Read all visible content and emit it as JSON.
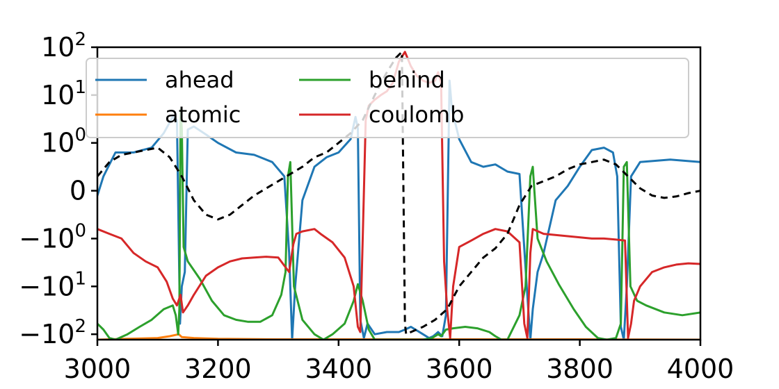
{
  "chart_data": {
    "type": "line",
    "title": "",
    "xlabel": "",
    "ylabel": "",
    "xlim": [
      3000,
      4000
    ],
    "y_scale": "symlog",
    "y_linthresh": 1,
    "ylim": [
      -130,
      100
    ],
    "grid": false,
    "legend_position": "top, three columns",
    "x_ticks": [
      {
        "value": 3000,
        "label": "3000"
      },
      {
        "value": 3200,
        "label": "3200"
      },
      {
        "value": 3400,
        "label": "3400"
      },
      {
        "value": 3600,
        "label": "3600"
      },
      {
        "value": 3800,
        "label": "3800"
      },
      {
        "value": 4000,
        "label": "4000"
      }
    ],
    "y_ticks": [
      {
        "value": 100,
        "base": "10",
        "exp": "2"
      },
      {
        "value": 10,
        "base": "10",
        "exp": "1"
      },
      {
        "value": 1,
        "base": "10",
        "exp": "0"
      },
      {
        "value": 0,
        "base": "0",
        "exp": ""
      },
      {
        "value": -1,
        "base": "−10",
        "exp": "0"
      },
      {
        "value": -10,
        "base": "−10",
        "exp": "1"
      },
      {
        "value": -100,
        "base": "−10",
        "exp": "2"
      }
    ],
    "series": [
      {
        "name": "ahead",
        "color": "#1f77b4",
        "dash": "",
        "points": [
          [
            3000,
            -0.1
          ],
          [
            3010,
            0.3
          ],
          [
            3030,
            0.8
          ],
          [
            3060,
            0.8
          ],
          [
            3090,
            0.9
          ],
          [
            3110,
            1.6
          ],
          [
            3125,
            3.5
          ],
          [
            3132,
            3
          ],
          [
            3137,
            -60
          ],
          [
            3140,
            -10
          ],
          [
            3145,
            -5
          ],
          [
            3150,
            1.9
          ],
          [
            3160,
            2.2
          ],
          [
            3180,
            1.5
          ],
          [
            3200,
            1.0
          ],
          [
            3230,
            0.8
          ],
          [
            3260,
            0.75
          ],
          [
            3290,
            0.6
          ],
          [
            3310,
            0.3
          ],
          [
            3318,
            -2
          ],
          [
            3323,
            -130
          ],
          [
            3328,
            -10
          ],
          [
            3340,
            -0.2
          ],
          [
            3360,
            0.5
          ],
          [
            3380,
            0.7
          ],
          [
            3400,
            0.8
          ],
          [
            3420,
            1.2
          ],
          [
            3428,
            3.5
          ],
          [
            3432,
            2
          ],
          [
            3436,
            -50
          ],
          [
            3442,
            -120
          ],
          [
            3448,
            -60
          ],
          [
            3460,
            -100
          ],
          [
            3480,
            -90
          ],
          [
            3500,
            -90
          ],
          [
            3510,
            -80
          ],
          [
            3520,
            -70
          ],
          [
            3540,
            -100
          ],
          [
            3550,
            -120
          ],
          [
            3557,
            -110
          ],
          [
            3565,
            -90
          ],
          [
            3572,
            -110
          ],
          [
            3578,
            -40
          ],
          [
            3584,
            20
          ],
          [
            3588,
            5
          ],
          [
            3600,
            1.2
          ],
          [
            3620,
            0.6
          ],
          [
            3640,
            0.5
          ],
          [
            3660,
            0.55
          ],
          [
            3680,
            0.4
          ],
          [
            3700,
            0.35
          ],
          [
            3712,
            -10
          ],
          [
            3718,
            -130
          ],
          [
            3722,
            -30
          ],
          [
            3730,
            -5
          ],
          [
            3740,
            -2
          ],
          [
            3760,
            -0.2
          ],
          [
            3780,
            0.1
          ],
          [
            3800,
            0.5
          ],
          [
            3820,
            0.85
          ],
          [
            3840,
            0.9
          ],
          [
            3855,
            0.8
          ],
          [
            3862,
            0.3
          ],
          [
            3868,
            -70
          ],
          [
            3873,
            -130
          ],
          [
            3878,
            -10
          ],
          [
            3885,
            0.3
          ],
          [
            3900,
            0.6
          ],
          [
            3950,
            0.65
          ],
          [
            4000,
            0.6
          ]
        ]
      },
      {
        "name": "atomic",
        "color": "#ff7f0e",
        "dash": "",
        "points": [
          [
            3000,
            -130
          ],
          [
            3050,
            -125
          ],
          [
            3100,
            -120
          ],
          [
            3120,
            -110
          ],
          [
            3135,
            -100
          ],
          [
            3140,
            -115
          ],
          [
            3160,
            -120
          ],
          [
            3200,
            -125
          ],
          [
            3300,
            -128
          ],
          [
            3400,
            -128
          ],
          [
            3500,
            -128
          ],
          [
            3600,
            -128
          ],
          [
            3700,
            -128
          ],
          [
            3800,
            -128
          ],
          [
            3900,
            -129
          ],
          [
            4000,
            -130
          ]
        ]
      },
      {
        "name": "behind",
        "color": "#2ca02c",
        "dash": "",
        "points": [
          [
            3000,
            -60
          ],
          [
            3010,
            -80
          ],
          [
            3020,
            -120
          ],
          [
            3030,
            -130
          ],
          [
            3050,
            -100
          ],
          [
            3070,
            -70
          ],
          [
            3090,
            -50
          ],
          [
            3110,
            -30
          ],
          [
            3125,
            -25
          ],
          [
            3130,
            -40
          ],
          [
            3134,
            -100
          ],
          [
            3136,
            -30
          ],
          [
            3138,
            5
          ],
          [
            3140,
            2
          ],
          [
            3143,
            -1.5
          ],
          [
            3150,
            -3
          ],
          [
            3170,
            -7
          ],
          [
            3190,
            -20
          ],
          [
            3210,
            -40
          ],
          [
            3230,
            -50
          ],
          [
            3250,
            -55
          ],
          [
            3270,
            -55
          ],
          [
            3290,
            -40
          ],
          [
            3305,
            -15
          ],
          [
            3312,
            -5
          ],
          [
            3316,
            0.3
          ],
          [
            3320,
            0.6
          ],
          [
            3326,
            -10
          ],
          [
            3340,
            -50
          ],
          [
            3360,
            -100
          ],
          [
            3375,
            -130
          ],
          [
            3390,
            -100
          ],
          [
            3410,
            -60
          ],
          [
            3425,
            -20
          ],
          [
            3432,
            -9
          ],
          [
            3440,
            -20
          ],
          [
            3450,
            -80
          ],
          [
            3460,
            -130
          ],
          [
            3480,
            -130
          ],
          [
            3500,
            -130
          ],
          [
            3520,
            -130
          ],
          [
            3540,
            -130
          ],
          [
            3555,
            -120
          ],
          [
            3565,
            -100
          ],
          [
            3570,
            -110
          ],
          [
            3578,
            -80
          ],
          [
            3590,
            -75
          ],
          [
            3610,
            -70
          ],
          [
            3630,
            -75
          ],
          [
            3650,
            -90
          ],
          [
            3660,
            -110
          ],
          [
            3670,
            -130
          ],
          [
            3680,
            -130
          ],
          [
            3700,
            -40
          ],
          [
            3710,
            -10
          ],
          [
            3718,
            0.3
          ],
          [
            3722,
            0.5
          ],
          [
            3730,
            -1
          ],
          [
            3745,
            -3
          ],
          [
            3765,
            -9
          ],
          [
            3790,
            -30
          ],
          [
            3810,
            -70
          ],
          [
            3830,
            -120
          ],
          [
            3845,
            -130
          ],
          [
            3860,
            -120
          ],
          [
            3868,
            -60
          ],
          [
            3873,
            0.5
          ],
          [
            3878,
            0.6
          ],
          [
            3884,
            -10
          ],
          [
            3895,
            -20
          ],
          [
            3910,
            -25
          ],
          [
            3940,
            -35
          ],
          [
            3970,
            -40
          ],
          [
            4000,
            -35
          ]
        ]
      },
      {
        "name": "coulomb",
        "color": "#d62728",
        "dash": "",
        "points": [
          [
            3000,
            -0.8
          ],
          [
            3020,
            -0.9
          ],
          [
            3040,
            -1.0
          ],
          [
            3060,
            -2
          ],
          [
            3080,
            -3
          ],
          [
            3100,
            -4
          ],
          [
            3115,
            -8
          ],
          [
            3125,
            -18
          ],
          [
            3132,
            -25
          ],
          [
            3138,
            -15
          ],
          [
            3142,
            -35
          ],
          [
            3150,
            -25
          ],
          [
            3160,
            -15
          ],
          [
            3180,
            -6
          ],
          [
            3200,
            -4
          ],
          [
            3220,
            -3
          ],
          [
            3240,
            -2.6
          ],
          [
            3260,
            -2.5
          ],
          [
            3280,
            -2.4
          ],
          [
            3300,
            -2.5
          ],
          [
            3318,
            -5
          ],
          [
            3325,
            -1.3
          ],
          [
            3330,
            -0.9
          ],
          [
            3340,
            -0.85
          ],
          [
            3360,
            -0.8
          ],
          [
            3370,
            -0.9
          ],
          [
            3390,
            -1.2
          ],
          [
            3410,
            -2.5
          ],
          [
            3425,
            -10
          ],
          [
            3432,
            -70
          ],
          [
            3436,
            -90
          ],
          [
            3440,
            -1
          ],
          [
            3445,
            3
          ],
          [
            3450,
            6
          ],
          [
            3460,
            8
          ],
          [
            3470,
            10
          ],
          [
            3480,
            12
          ],
          [
            3490,
            18
          ],
          [
            3500,
            50
          ],
          [
            3510,
            80
          ],
          [
            3520,
            40
          ],
          [
            3530,
            25
          ],
          [
            3540,
            20
          ],
          [
            3550,
            18
          ],
          [
            3560,
            20
          ],
          [
            3565,
            30
          ],
          [
            3570,
            18
          ],
          [
            3575,
            -3
          ],
          [
            3580,
            -30
          ],
          [
            3585,
            -120
          ],
          [
            3590,
            -10
          ],
          [
            3600,
            -1.5
          ],
          [
            3620,
            -1.1
          ],
          [
            3640,
            -0.9
          ],
          [
            3660,
            -0.8
          ],
          [
            3680,
            -0.85
          ],
          [
            3700,
            -1.2
          ],
          [
            3708,
            -60
          ],
          [
            3713,
            -120
          ],
          [
            3718,
            -2
          ],
          [
            3722,
            -0.8
          ],
          [
            3740,
            -0.9
          ],
          [
            3780,
            -0.95
          ],
          [
            3820,
            -1.0
          ],
          [
            3840,
            -1.0
          ],
          [
            3860,
            -1.05
          ],
          [
            3875,
            -1.1
          ],
          [
            3880,
            -120
          ],
          [
            3885,
            -60
          ],
          [
            3890,
            -20
          ],
          [
            3900,
            -10
          ],
          [
            3920,
            -5
          ],
          [
            3940,
            -4
          ],
          [
            3960,
            -3.5
          ],
          [
            3980,
            -3.3
          ],
          [
            4000,
            -3.4
          ]
        ]
      },
      {
        "name": "",
        "color": "#000000",
        "dash": "10,7",
        "points": [
          [
            3000,
            0.3
          ],
          [
            3020,
            0.6
          ],
          [
            3040,
            0.75
          ],
          [
            3060,
            0.8
          ],
          [
            3080,
            0.85
          ],
          [
            3100,
            0.9
          ],
          [
            3120,
            0.7
          ],
          [
            3140,
            0.3
          ],
          [
            3160,
            -0.2
          ],
          [
            3180,
            -0.5
          ],
          [
            3200,
            -0.6
          ],
          [
            3220,
            -0.5
          ],
          [
            3240,
            -0.3
          ],
          [
            3260,
            -0.1
          ],
          [
            3280,
            0.05
          ],
          [
            3300,
            0.2
          ],
          [
            3320,
            0.35
          ],
          [
            3340,
            0.5
          ],
          [
            3360,
            0.7
          ],
          [
            3380,
            0.8
          ],
          [
            3400,
            1.0
          ],
          [
            3420,
            1.6
          ],
          [
            3440,
            3
          ],
          [
            3460,
            10
          ],
          [
            3480,
            30
          ],
          [
            3495,
            60
          ],
          [
            3505,
            80
          ],
          [
            3510,
            -60
          ],
          [
            3512,
            -100
          ],
          [
            3520,
            -90
          ],
          [
            3540,
            -70
          ],
          [
            3560,
            -50
          ],
          [
            3580,
            -30
          ],
          [
            3600,
            -10
          ],
          [
            3620,
            -5
          ],
          [
            3640,
            -2.5
          ],
          [
            3660,
            -1.6
          ],
          [
            3680,
            -0.9
          ],
          [
            3700,
            -0.3
          ],
          [
            3720,
            0.1
          ],
          [
            3740,
            0.2
          ],
          [
            3760,
            0.3
          ],
          [
            3780,
            0.45
          ],
          [
            3800,
            0.55
          ],
          [
            3820,
            0.6
          ],
          [
            3840,
            0.65
          ],
          [
            3860,
            0.55
          ],
          [
            3880,
            0.3
          ],
          [
            3900,
            0.05
          ],
          [
            3920,
            -0.1
          ],
          [
            3940,
            -0.15
          ],
          [
            3960,
            -0.12
          ],
          [
            3980,
            -0.05
          ],
          [
            4000,
            0.0
          ]
        ]
      }
    ]
  }
}
